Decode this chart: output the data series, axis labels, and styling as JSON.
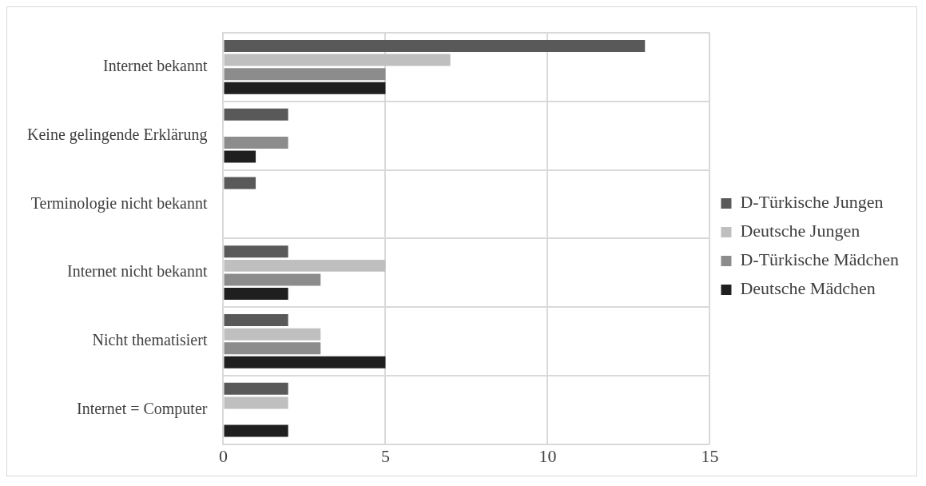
{
  "chart_data": {
    "type": "bar",
    "orientation": "horizontal",
    "categories": [
      "Internet bekannt",
      "Keine gelingende Erklärung",
      "Terminologie nicht bekannt",
      "Internet nicht bekannt",
      "Nicht thematisiert",
      "Internet = Computer"
    ],
    "series": [
      {
        "name": "D-Türkische Jungen",
        "color": "#595959",
        "values": [
          13,
          2,
          1,
          2,
          2,
          2
        ]
      },
      {
        "name": "Deutsche Jungen",
        "color": "#bfbfbf",
        "values": [
          7,
          0,
          0,
          5,
          3,
          2
        ]
      },
      {
        "name": "D-Türkische Mädchen",
        "color": "#8c8c8c",
        "values": [
          5,
          2,
          0,
          3,
          3,
          0
        ]
      },
      {
        "name": "Deutsche Mädchen",
        "color": "#1f1f1f",
        "values": [
          5,
          1,
          0,
          2,
          5,
          2
        ]
      }
    ],
    "xlim": [
      0,
      15
    ],
    "xticks": [
      0,
      5,
      10,
      15
    ],
    "grid": true,
    "legend": "right"
  }
}
